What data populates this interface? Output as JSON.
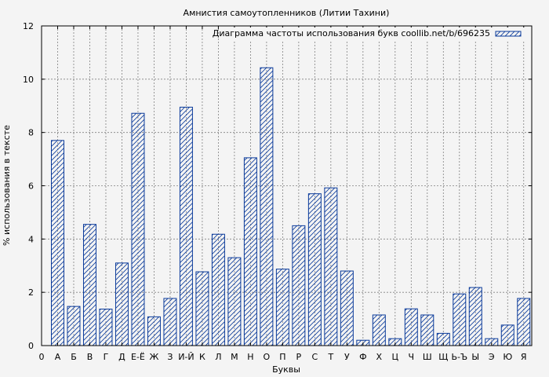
{
  "chart_data": {
    "type": "bar",
    "title": "Амнистия самоутопленников (Литии Тахини)",
    "xlabel": "Буквы",
    "ylabel": "% использования в тексте",
    "ylim": [
      0,
      12
    ],
    "yticks": [
      0,
      2,
      4,
      6,
      8,
      10,
      12
    ],
    "x_origin_label": "0",
    "grid": true,
    "legend_position": "top-right",
    "categories": [
      "А",
      "Б",
      "В",
      "Г",
      "Д",
      "Е-Ё",
      "Ж",
      "З",
      "И-Й",
      "К",
      "Л",
      "М",
      "Н",
      "О",
      "П",
      "Р",
      "С",
      "Т",
      "У",
      "Ф",
      "Х",
      "Ц",
      "Ч",
      "Ш",
      "Щ",
      "Ь-Ъ",
      "Ы",
      "Э",
      "Ю",
      "Я"
    ],
    "series": [
      {
        "name": "Диаграмма частоты использования букв coollib.net/b/696235",
        "values": [
          7.7,
          1.47,
          4.55,
          1.37,
          3.1,
          8.72,
          1.08,
          1.77,
          8.95,
          2.77,
          4.18,
          3.3,
          7.05,
          10.43,
          2.87,
          4.5,
          5.7,
          5.92,
          2.8,
          0.2,
          1.15,
          0.26,
          1.38,
          1.15,
          0.46,
          1.94,
          2.18,
          0.26,
          0.77,
          1.77
        ]
      }
    ],
    "colors": {
      "bar_stroke": "#0a3a9a",
      "background": "#f4f4f4",
      "grid": "#808080"
    }
  }
}
